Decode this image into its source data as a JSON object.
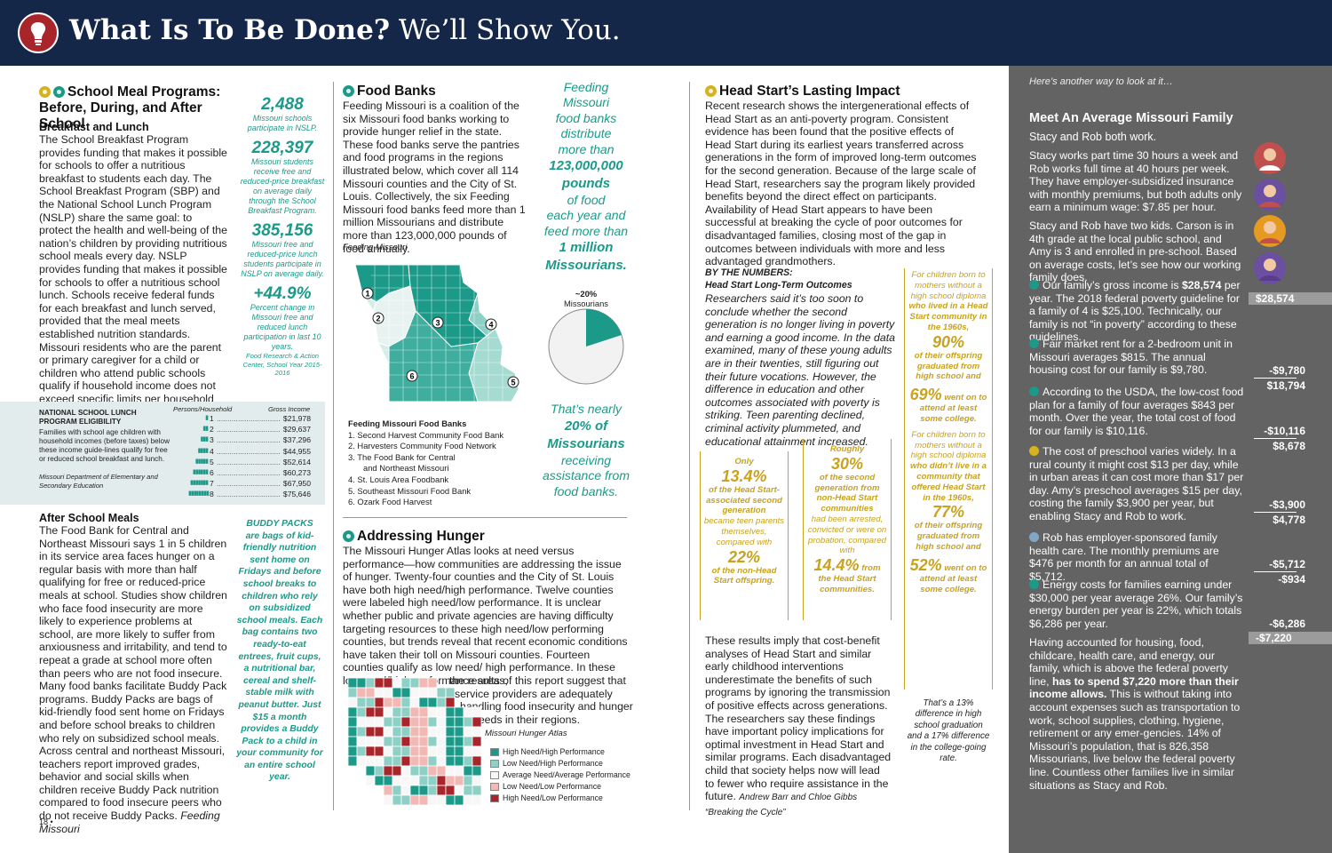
{
  "header": {
    "title_bold": "What Is To Be Done?",
    "title_rest": " We’ll Show You."
  },
  "col1": {
    "title_l1": "School Meal Programs:",
    "title_l2": "Before, During, and After School",
    "breakfast_heading": "Breakfast and Lunch",
    "breakfast_body": "The School Breakfast Program provides funding that makes it possible for schools to offer a nutritious breakfast to students each day. The School Breakfast Program (SBP) and the National School Lunch Program (NSLP) share the same goal: to protect the health and well-being of the nation’s children by providing nutritious school meals every day. NSLP provides funding that makes it possible for schools to offer a nutritious school lunch. Schools receive federal funds for each breakfast and lunch served, provided that the meal meets established nutrition standards. Missouri residents who are the parent or primary caregiver for a child or children who attend public schools qualify if household income does not exceed specific limits per household size listed:",
    "after_heading": "After School Meals",
    "after_body": "The Food Bank for Central and Northeast Missouri says 1 in 5 children in its service area faces hunger on a regular basis with more than half qualifying for free or reduced-price meals at school. Studies show children who face food insecurity are more likely to experience problems at school, are more likely to suffer from anxiousness and irritability, and tend to repeat a grade at school more often than peers who are not food insecure. Many food banks facilitate Buddy Pack programs. Buddy Packs are bags of kid-friendly food sent home on Fridays and before school breaks to children who rely on subsidized school meals. Across central and northeast Missouri, teachers report improved grades, behavior and social skills when children receive Buddy Pack nutrition compared to food insecure peers who do not receive Buddy Packs.",
    "after_cite": "Feeding Missouri",
    "page_number": "18 •"
  },
  "stats_col": [
    {
      "big": "2,488",
      "small": "Missouri schools participate in NSLP."
    },
    {
      "big": "228,397",
      "small": "Missouri students receive free and reduced-price breakfast on average daily through the School Breakfast Program."
    },
    {
      "big": "385,156",
      "small": "Missouri free and reduced-price lunch students participate in NSLP on average daily."
    },
    {
      "big": "+44.9%",
      "small": "Percent change in Missouri free and reduced lunch participation in last 10 years.",
      "cite": "Food Research & Action Center, School Year 2015-2016"
    }
  ],
  "buddy": {
    "title": "BUDDY PACKS",
    "text": "are bags of kid-friendly nutrition sent home on Fridays and before school breaks to children who rely on subsidized school meals. Each bag contains two ready-to-eat entrees, fruit cups, a nutritional bar, cereal and shelf-stable milk with peanut butter. Just $15 a month provides a Buddy Pack to a child in your community for an entire school year."
  },
  "nslp": {
    "title_l1": "NATIONAL SCHOOL LUNCH",
    "title_l2": "PROGRAM ELIGIBILITY",
    "desc": "Families with school age children with household incomes (before taxes) below these income guide-lines qualify for free or reduced school breakfast and lunch.",
    "cite": "Missouri Department of Elementary and Secondary Education",
    "col_persons": "Persons/Household",
    "col_income": "Gross Income",
    "rows": [
      {
        "n": "1",
        "v": "$21,978"
      },
      {
        "n": "2",
        "v": "$29,637"
      },
      {
        "n": "3",
        "v": "$37,296"
      },
      {
        "n": "4",
        "v": "$44,955"
      },
      {
        "n": "5",
        "v": "$52,614"
      },
      {
        "n": "6",
        "v": "$60,273"
      },
      {
        "n": "7",
        "v": "$67,950"
      },
      {
        "n": "8",
        "v": "$75,646"
      }
    ],
    "dots": "......................................"
  },
  "foodbanks": {
    "title": "Food Banks",
    "body": "Feeding Missouri is a coalition of the six Missouri food banks working to provide hunger relief in the state. These food banks serve the pantries and food programs in the regions illustrated below, which cover all 114 Missouri counties and the City of St. Louis. Collectively, the six Feeding Missouri food banks feed more than 1 million Missourians and distribute more than 123,000,000 pounds of food annually.",
    "cite": "Feeding Missouri",
    "list_title": "Feeding Missouri Food Banks",
    "list": [
      "1. Second Harvest Community Food Bank",
      "2. Harvesters Community Food Network",
      "3. The Food Bank for Central",
      "and Northeast Missouri",
      "4. St. Louis Area Foodbank",
      "5. Southeast Missouri Food Bank",
      "6. Ozark Food Harvest"
    ],
    "map_labels": [
      "1",
      "2",
      "3",
      "4",
      "5",
      "6"
    ]
  },
  "pullquote": {
    "lines": [
      "Feeding",
      "Missouri",
      "food banks",
      "distribute",
      "more than"
    ],
    "bold1": "123,000,000",
    "bold2": "pounds",
    "lines2": [
      "of food",
      "each year and",
      "feed more than"
    ],
    "bold3": "1 million",
    "bold4": "Missourians",
    "pie_pct": "~20%",
    "pie_label": "Missourians",
    "pie_fraction": 0.2,
    "nearly_l1": "That’s nearly",
    "nearly_bold1": "20% of",
    "nearly_bold2": "Missourians",
    "nearly_l4": "receiving",
    "nearly_l5": "assistance from",
    "nearly_l6": "food banks."
  },
  "hunger": {
    "title": "Addressing Hunger",
    "body": "The Missouri Hunger Atlas looks at need versus performance—how communities are addressing the issue of hunger. Twenty-four counties and the City of St. Louis have both high need/high performance. Twelve counties were labeled high need/low performance. It is unclear whether public and private agencies are having difficulty targeting resources to these high need/low performing counties, but trends reveal that recent economic conditions have taken their toll on Missouri counties. Fourteen counties qualify as low need/ high performance. In these low need/high performance areas,",
    "body2_l1": "the results of this report suggest that",
    "body2_l2": "service providers are adequately",
    "body2_l3": "handling food insecurity and hunger",
    "body2_l4": "needs in their regions.",
    "cite": "Missouri Hunger Atlas",
    "legend": [
      "High Need/High Performance",
      "Low Need/High Performance",
      "Average Need/Average Performance",
      "Low Need/Low Performance",
      "High Need/Low Performance"
    ],
    "legend_colors": [
      "#1b9a8a",
      "#8fd0c6",
      "#f7f7f7",
      "#f1b8b4",
      "#a8252c"
    ]
  },
  "headstart": {
    "title": "Head Start’s Lasting Impact",
    "body": "Recent research shows the intergenerational effects of Head Start as an anti-poverty program. Consistent evidence has been found that the positive effects of Head Start during its earliest years transferred across generations in the form of improved long-term outcomes for the second generation. Because of the large scale of Head Start, researchers say the program likely provided benefits beyond the direct effect on participants. Availability of Head Start appears to have been successful at breaking the cycle of poor outcomes for disadvantaged families, closing most of the gap in outcomes between individuals with more and less advantaged grandmothers.",
    "numbers_title": "BY THE NUMBERS:",
    "numbers_sub": "Head Start Long-Term Outcomes",
    "numbers_body": "Researchers said it’s too soon to conclude whether the second generation is no longer living in poverty and earning a good income. In the data examined, many of these young adults are in their twenties, still figuring out their future vocations. However, the difference in education and other outcomes associated with poverty is striking. Teen parenting declined, criminal activity plummeted, and educational attainment increased.",
    "box1": {
      "l1": "Only",
      "big1": "13.4%",
      "l2": "of the Head Start-associated second generation",
      "l3": "became teen parents themselves, compared with",
      "big2": "22%",
      "l4": "of the non-Head Start offspring."
    },
    "box2": {
      "l1": "Roughly",
      "big1": "30%",
      "l2": "of the second generation from",
      "l3": "non-Head Start communities",
      "l4": "had been arrested, convicted or were on probation, compared with",
      "big2": "14.4%",
      "l5": "from the Head Start communities."
    },
    "box3": {
      "l1": "For children born to mothers without a high school diploma",
      "l2": "who lived in a Head Start community in the 1960s,",
      "big1": "90%",
      "l3": "of their offspring graduated from high school and",
      "big2": "69%",
      "l4": "went on to attend at least some college.",
      "l5": "For children born to mothers without a high school diploma",
      "l6": "who didn’t live in a community that offered Head Start in the 1960s,",
      "big3": "77%",
      "l7": "of their offspring graduated from high school and",
      "big4": "52%",
      "l8": "went on to attend at least some college."
    },
    "conclusion": "These results imply that cost-benefit analyses of Head Start and similar early childhood interventions underestimate the benefits of such programs by ignoring the transmission of positive effects across generations. The researchers say these findings have important policy implications for optimal investment in Head Start and similar programs. Each disadvantaged child that society helps now will lead to fewer who require assistance in the future.",
    "cite": "Andrew Barr and Chloe Gibbs “Breaking the Cycle”",
    "diff": "That’s a 13% difference in high school graduation and a 17% difference in the college-going rate."
  },
  "sidebar": {
    "intro": "Here’s another way to look at it…",
    "title": "Meet An Average Missouri Family",
    "subtitle": "Stacy and Rob both work.",
    "p1": "Stacy works part time 30 hours a week and Rob works full time at 40 hours per week. They have employer-subsidized insurance with monthly premiums, but both adults only earn a minimum wage: $7.85 per hour.",
    "p2": "Stacy and Rob have two kids. Carson is in 4th grade at the local public school, and Amy is 3 and enrolled in pre-school. Based on average costs, let’s see how our working family does.",
    "items": [
      {
        "pre": "Our family’s gross income is ",
        "bold": "$28,574",
        "post": " per year. The 2018 federal poverty guideline for a family of 4 is $25,100. Technically, our family is not “in poverty” according to these guidelines.",
        "icon": "dollar-icon"
      },
      {
        "pre": "Fair market rent for a 2-bedroom unit in Missouri averages $815. The annual housing cost for our family is $9,780.",
        "bold": "",
        "post": "",
        "icon": "house-icon"
      },
      {
        "pre": "According to the USDA, the low-cost food plan for a family of four averages $843 per month. Over the year, the total cost of food for our family is $10,116.",
        "bold": "",
        "post": "",
        "icon": "cart-icon"
      },
      {
        "pre": "The cost of preschool varies widely. In a rural county it might cost $13 per day, while in urban areas it can cost more than $17 per day. Amy’s preschool averages $15 per day, costing the family $3,900 per year, but enabling Stacy and Rob to work.",
        "bold": "",
        "post": "",
        "icon": "pencil-icon"
      },
      {
        "pre": "Rob has employer-sponsored family health care. The monthly premiums are $476 per month for an annual total of $5,712.",
        "bold": "",
        "post": "",
        "icon": "health-icon"
      },
      {
        "pre": "Energy costs for families earning under $30,000 per year average 26%. Our family’s energy burden per year is 22%, which totals $6,286 per year.",
        "bold": "",
        "post": "",
        "icon": "energy-icon"
      }
    ],
    "final_pre": "Having accounted for housing, food, childcare, health care, and energy, our family, which is above the federal poverty line, ",
    "final_bold": "has to spend $7,220 more than their income allows.",
    "final_post": " This is without taking into account expenses such as transportation to work, school supplies, clothing, hygiene, retirement or any emer-gencies. 14% of Missouri’s population, that is 826,358 Missourians, live below the federal poverty line. Countless other families live in similar situations as Stacy and Rob.",
    "amounts": {
      "income": "$28,574",
      "housing": "-$9,780",
      "after_housing": "$18,794",
      "food": "-$10,116",
      "after_food": "$8,678",
      "preschool": "-$3,900",
      "after_preschool": "$4,778",
      "health": "-$5,712",
      "after_health": "-$934",
      "energy": "-$6,286",
      "final": "-$7,220"
    }
  }
}
